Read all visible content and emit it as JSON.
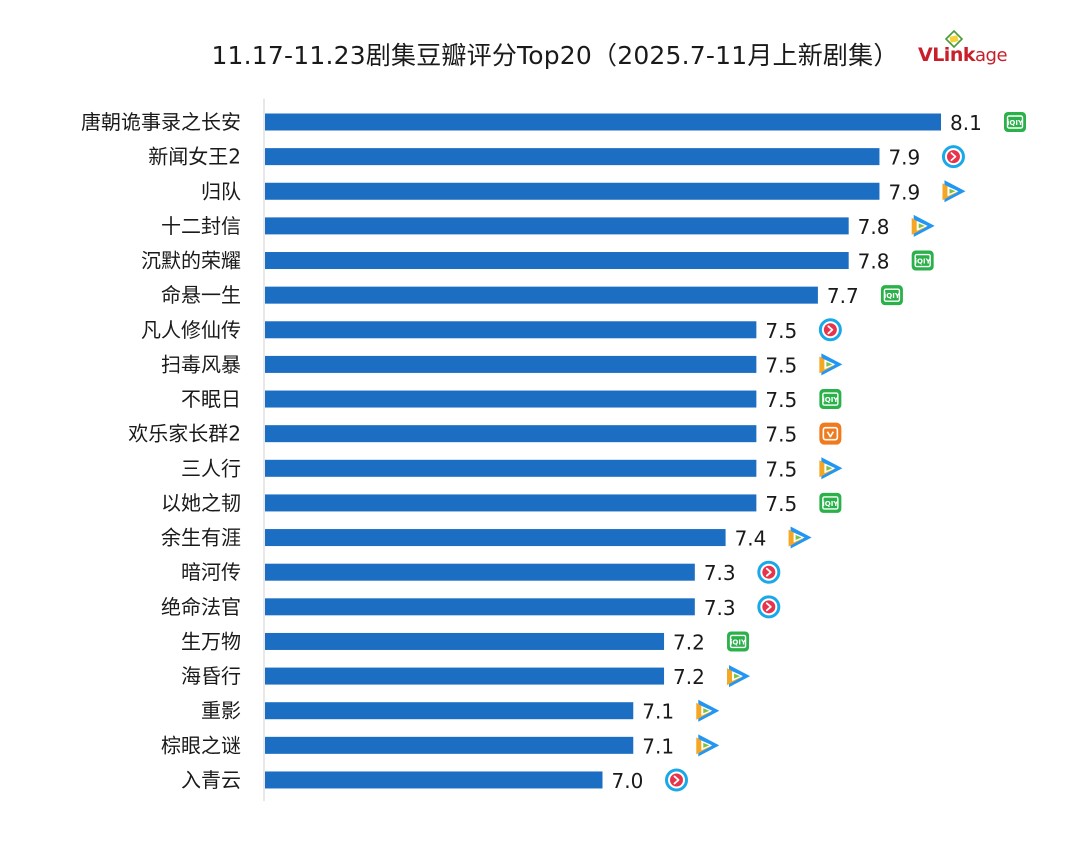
{
  "header": {
    "title": "11.17-11.23剧集豆瓣评分Top20（2025.7-11月上新剧集）",
    "logo_text_main": "VLink",
    "logo_text_tail": "age"
  },
  "colors": {
    "bar": "#1b6ec2",
    "axis": "#d0d0d0",
    "iqiyi": "#2bb14a",
    "tencent": "#1a9ae6",
    "youku": "#1aa9e8",
    "mango": "#f07a1e",
    "logo_red": "#c8202a"
  },
  "chart_data": {
    "type": "bar",
    "orientation": "horizontal",
    "title": "11.17-11.23剧集豆瓣评分Top20（2025.7-11月上新剧集）",
    "xlim": [
      5.9,
      8.1
    ],
    "grid": false,
    "legend": "none",
    "categories": [
      "唐朝诡事录之长安",
      "新闻女王2",
      "归队",
      "十二封信",
      "沉默的荣耀",
      "命悬一生",
      "凡人修仙传",
      "扫毒风暴",
      "不眠日",
      "欢乐家长群2",
      "三人行",
      "以她之韧",
      "余生有涯",
      "暗河传",
      "绝命法官",
      "生万物",
      "海昏行",
      "重影",
      "棕眼之谜",
      "入青云"
    ],
    "values": [
      8.1,
      7.9,
      7.9,
      7.8,
      7.8,
      7.7,
      7.5,
      7.5,
      7.5,
      7.5,
      7.5,
      7.5,
      7.4,
      7.3,
      7.3,
      7.2,
      7.2,
      7.1,
      7.1,
      7.0
    ],
    "value_labels": [
      "8.1",
      "7.9",
      "7.9",
      "7.8",
      "7.8",
      "7.7",
      "7.5",
      "7.5",
      "7.5",
      "7.5",
      "7.5",
      "7.5",
      "7.4",
      "7.3",
      "7.3",
      "7.2",
      "7.2",
      "7.1",
      "7.1",
      "7.0"
    ],
    "platform_icons": [
      "iqiyi-icon",
      "youku-icon",
      "tencent-video-icon",
      "tencent-video-icon",
      "iqiyi-icon",
      "iqiyi-icon",
      "youku-icon",
      "tencent-video-icon",
      "iqiyi-icon",
      "mango-tv-icon",
      "tencent-video-icon",
      "iqiyi-icon",
      "tencent-video-icon",
      "youku-icon",
      "youku-icon",
      "iqiyi-icon",
      "tencent-video-icon",
      "tencent-video-icon",
      "tencent-video-icon",
      "youku-icon"
    ]
  }
}
